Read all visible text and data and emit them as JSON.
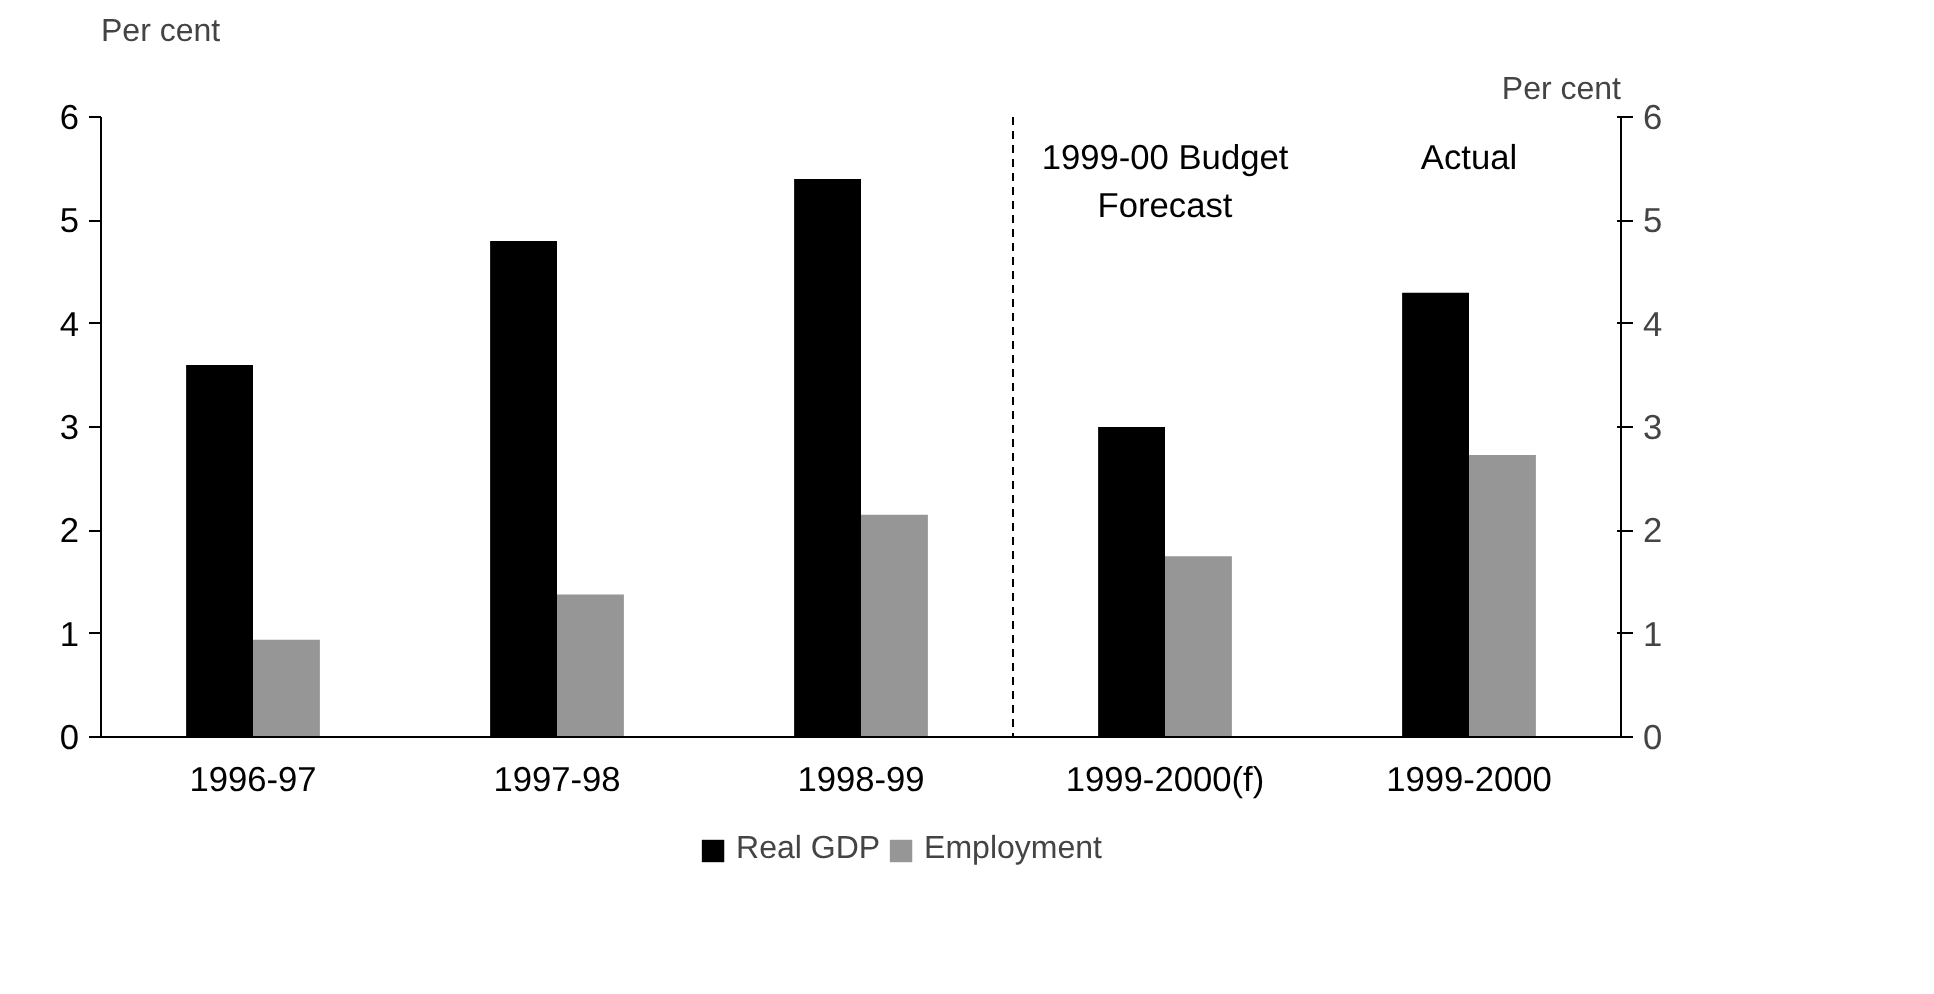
{
  "chart_data": {
    "type": "bar",
    "ylabel": "Per cent",
    "y2label": "Per cent",
    "categories": [
      "1996-97",
      "1997-98",
      "1998-99",
      "1999-2000(f)",
      "1999-2000"
    ],
    "series": [
      {
        "name": "Real GDP",
        "color": "#000000",
        "values": [
          3.6,
          4.8,
          5.4,
          3.0,
          4.3
        ]
      },
      {
        "name": "Employment",
        "color": "#969696",
        "values": [
          0.94,
          1.38,
          2.15,
          1.75,
          2.73
        ]
      }
    ],
    "ylim": [
      0,
      6
    ],
    "yticks": [
      0,
      1,
      2,
      3,
      4,
      5,
      6
    ],
    "y2lim": [
      0,
      6
    ],
    "y2ticks": [
      0,
      1,
      2,
      3,
      4,
      5,
      6
    ],
    "annotations": [
      "1999-00 Budget\nForecast",
      "Actual"
    ],
    "grid": false,
    "legend": "bottom"
  }
}
